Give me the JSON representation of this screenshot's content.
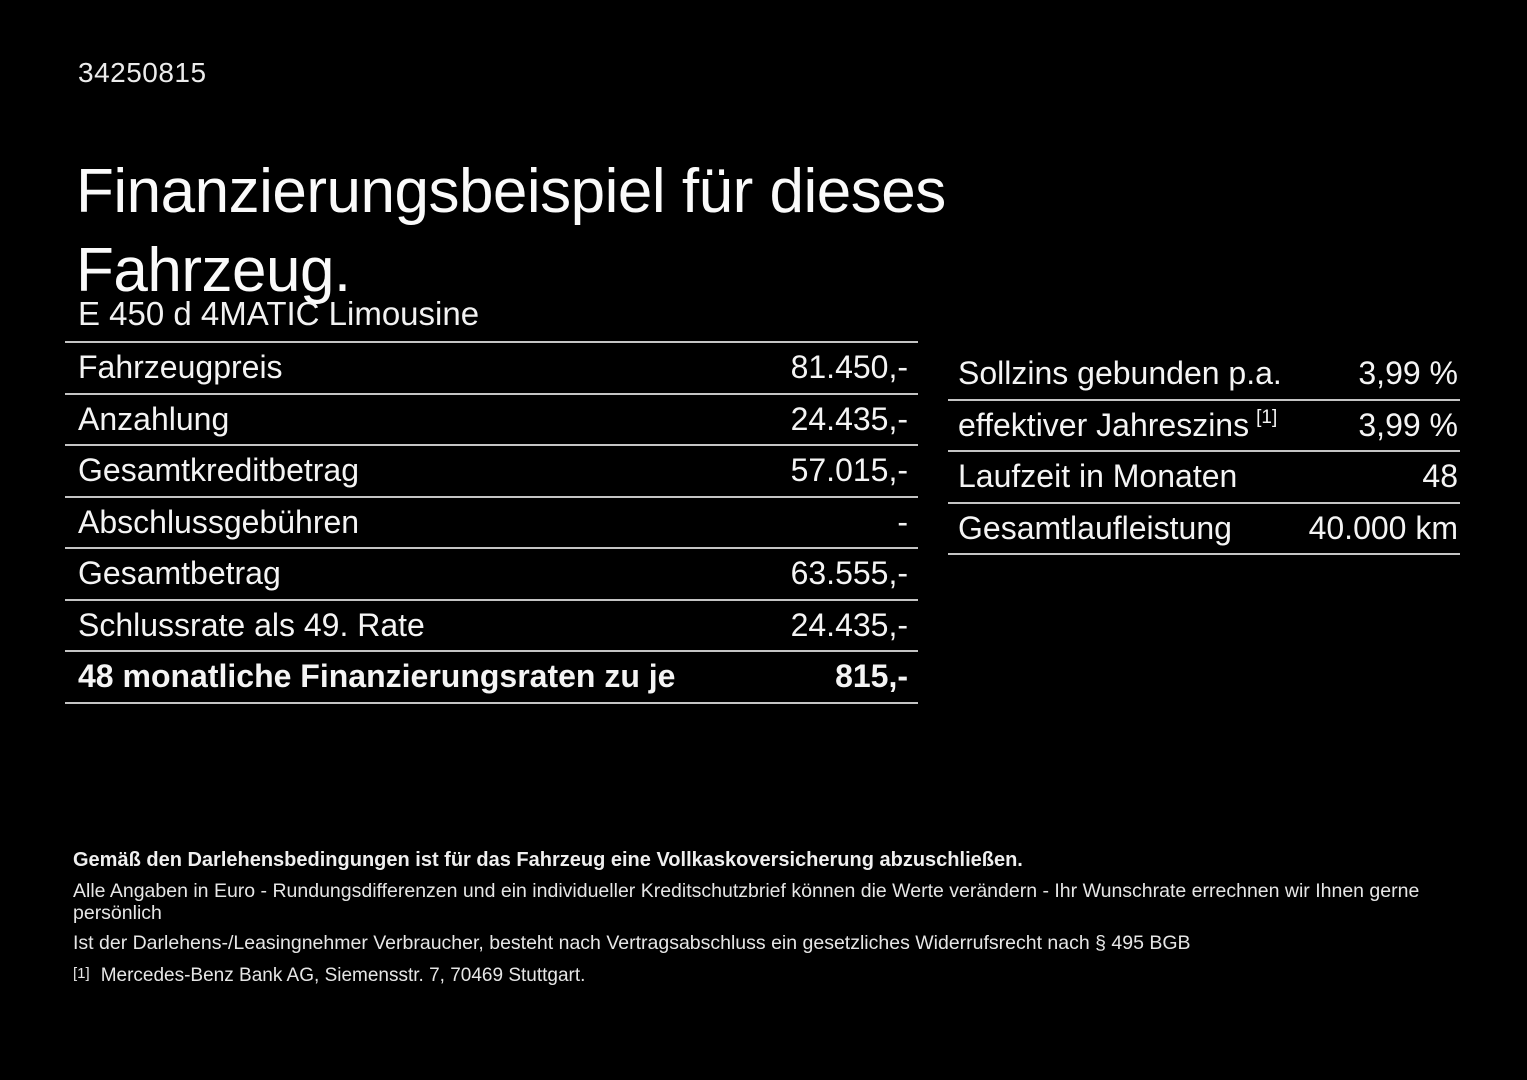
{
  "page": {
    "background": "#000000",
    "text_color": "#f2f2f2",
    "divider_color": "#c4c4c4"
  },
  "header": {
    "reference_number": "34250815",
    "title": "Finanzierungsbeispiel für dieses\nFahrzeug.",
    "vehicle_model": "E 450 d 4MATIC Limousine"
  },
  "finance_table": {
    "rows": [
      {
        "label": "Fahrzeugpreis",
        "value": "81.450,-"
      },
      {
        "label": "Anzahlung",
        "value": "24.435,-"
      },
      {
        "label": "Gesamtkreditbetrag",
        "value": "57.015,-"
      },
      {
        "label": "Abschlussgebühren",
        "value": "-"
      },
      {
        "label": "Gesamtbetrag",
        "value": "63.555,-"
      },
      {
        "label": "Schlussrate als 49. Rate",
        "value": "24.435,-"
      },
      {
        "label": "48 monatliche Finanzierungsraten zu je",
        "value": "815,-"
      }
    ]
  },
  "conditions_table": {
    "rows": [
      {
        "label": "Sollzins gebunden p.a.",
        "sup": "",
        "value": "3,99 %"
      },
      {
        "label": "effektiver Jahreszins",
        "sup": "[1]",
        "value": "3,99 %"
      },
      {
        "label": "Laufzeit in Monaten",
        "sup": "",
        "value": "48"
      },
      {
        "label": "Gesamtlaufleistung",
        "sup": "",
        "value": "40.000 km"
      }
    ]
  },
  "footer": {
    "insurance_note": "Gemäß den Darlehensbedingungen ist für das Fahrzeug eine Vollkaskoversicherung abzuschließen.",
    "disclaimer_line1": "Alle Angaben in Euro - Rundungsdifferenzen und ein individueller Kreditschutzbrief können die Werte verändern - Ihr Wunschrate errechnen wir Ihnen gerne persönlich",
    "disclaimer_line2": "Ist der Darlehens-/Leasingnehmer Verbraucher, besteht nach Vertragsabschluss ein gesetzliches Widerrufsrecht nach § 495 BGB",
    "footnote_marker": "[1]",
    "footnote_text": "Mercedes-Benz Bank AG, Siemensstr. 7, 70469 Stuttgart."
  }
}
